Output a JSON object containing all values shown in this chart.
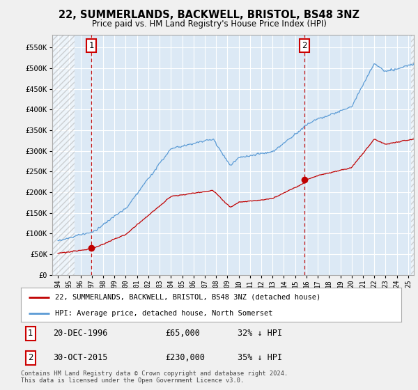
{
  "title": "22, SUMMERLANDS, BACKWELL, BRISTOL, BS48 3NZ",
  "subtitle": "Price paid vs. HM Land Registry's House Price Index (HPI)",
  "legend_line1": "22, SUMMERLANDS, BACKWELL, BRISTOL, BS48 3NZ (detached house)",
  "legend_line2": "HPI: Average price, detached house, North Somerset",
  "annotation1_label": "1",
  "annotation1_date": "20-DEC-1996",
  "annotation1_price": "£65,000",
  "annotation1_note": "32% ↓ HPI",
  "annotation1_year": 1996.96,
  "annotation1_value": 65000,
  "annotation2_label": "2",
  "annotation2_date": "30-OCT-2015",
  "annotation2_price": "£230,000",
  "annotation2_note": "35% ↓ HPI",
  "annotation2_year": 2015.83,
  "annotation2_value": 230000,
  "hpi_color": "#5b9bd5",
  "price_color": "#c00000",
  "marker_color": "#c00000",
  "dashed_line_color": "#c00000",
  "background_color": "#f0f0f0",
  "plot_bg_color": "#dce9f5",
  "grid_color": "#ffffff",
  "ylim": [
    0,
    580000
  ],
  "xlim_start": 1993.5,
  "xlim_end": 2025.5,
  "footer": "Contains HM Land Registry data © Crown copyright and database right 2024.\nThis data is licensed under the Open Government Licence v3.0.",
  "yticks": [
    0,
    50000,
    100000,
    150000,
    200000,
    250000,
    300000,
    350000,
    400000,
    450000,
    500000,
    550000
  ],
  "ytick_labels": [
    "£0",
    "£50K",
    "£100K",
    "£150K",
    "£200K",
    "£250K",
    "£300K",
    "£350K",
    "£400K",
    "£450K",
    "£500K",
    "£550K"
  ],
  "hatch_end_year": 1995.5
}
